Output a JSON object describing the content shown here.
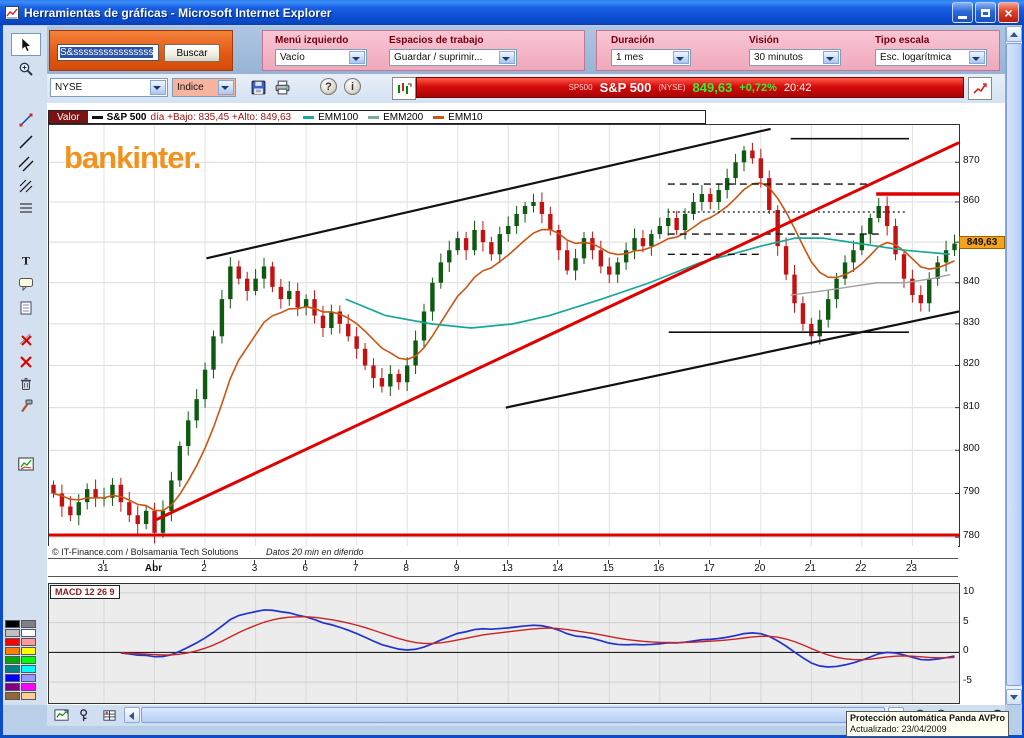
{
  "window": {
    "title": "Herramientas de gráficas - Microsoft Internet Explorer"
  },
  "toolbar": {
    "search": {
      "value": "S&ssssssssssssssss",
      "button_label": "Buscar"
    },
    "menu_izquierdo": {
      "label": "Menú izquierdo",
      "value": "Vacío"
    },
    "espacios": {
      "label": "Espacios de trabajo",
      "value": "Guardar / suprimir..."
    },
    "duracion": {
      "label": "Duración",
      "value": "1 mes"
    },
    "vision": {
      "label": "Visión",
      "value": "30 minutos"
    },
    "tipo_escala": {
      "label": "Tipo escala",
      "value": "Esc. logarítmica"
    },
    "exchange": {
      "value": "NYSE"
    },
    "instrument_type": {
      "value": "Indice"
    },
    "help_label": "?",
    "info_label": "i"
  },
  "banner": {
    "symbol_small": "SP500",
    "symbol": "S&P 500",
    "exchange": "(NYSE)",
    "price": "849,63",
    "change": "+0,72%",
    "time": "20:42"
  },
  "legend": {
    "valor_label": "Valor",
    "series_name": "S&P 500",
    "day_info": "día +Bajo: 835,45 +Alto: 849,63",
    "emm100": "EMM100",
    "emm200": "EMM200",
    "emm10": "EMM10"
  },
  "watermark": "bankinter.",
  "footer": {
    "copyright": "© IT-Finance.com / Bolsamania Tech Solutions",
    "delay_note": "Datos 20 min en diferido"
  },
  "price_badge": "849,63",
  "macd_label": "MACD 12 26 9",
  "popup": {
    "line1": "Protección automática Panda AVPro",
    "line2": "Actualizado: 23/04/2009"
  },
  "sidebar": {
    "tools": [
      {
        "name": "cursor-tool",
        "selected": true
      },
      {
        "name": "zoom-tool"
      },
      {
        "name": "segment-tool"
      },
      {
        "name": "trendline-tool"
      },
      {
        "name": "parallel-channel-tool"
      },
      {
        "name": "pitchfork-tool"
      },
      {
        "name": "fibonacci-tool"
      },
      {
        "name": "text-tool"
      },
      {
        "name": "callout-tool"
      },
      {
        "name": "notes-tool"
      },
      {
        "name": "delete-drawing-tool"
      },
      {
        "name": "delete-all-tool"
      },
      {
        "name": "trash-tool"
      },
      {
        "name": "settings-tool"
      },
      {
        "name": "mini-chart-tool"
      }
    ]
  },
  "palette": [
    "#000000",
    "#808080",
    "#c0c0c0",
    "#ffffff",
    "#ff0000",
    "#ff9999",
    "#ff8000",
    "#ffff00",
    "#00aa00",
    "#00ff00",
    "#008080",
    "#00ffff",
    "#0000ff",
    "#9999ff",
    "#800080",
    "#ff00ff",
    "#996633",
    "#ffcc99"
  ],
  "bottom_toolbar": {
    "left_icons": [
      "chart-panel-icon",
      "key-icon",
      "grid-icon"
    ],
    "zoom_icons": [
      "zoom-out-icon",
      "zoom-in-icon"
    ],
    "fit_icon": "fit-screen-icon"
  },
  "chart_data": {
    "type": "candlestick",
    "symbol": "S&P 500",
    "exchange": "NYSE",
    "interval": "30 minutos",
    "duration": "1 mes",
    "scale": "logarítmica",
    "last_price": 849.63,
    "day_low": 835.45,
    "day_high": 849.63,
    "change_pct": "+0,72%",
    "time": "20:42",
    "y_axis": {
      "scale": "log",
      "min": 778,
      "max": 879.5,
      "ticks": [
        870,
        860,
        850,
        840,
        830,
        820,
        810,
        800,
        790,
        780
      ]
    },
    "x_ticks": {
      "labels": [
        "31",
        "Abr",
        "2",
        "3",
        "6",
        "7",
        "8",
        "9",
        "13",
        "14",
        "15",
        "16",
        "17",
        "20",
        "21",
        "22",
        "23"
      ],
      "bold_index": 1
    },
    "first_open": 792,
    "closes": [
      790,
      787,
      785,
      788,
      791,
      789,
      789,
      792,
      788,
      785,
      783,
      786,
      781,
      786,
      793,
      801,
      807,
      812,
      819,
      827,
      836,
      844,
      841,
      838,
      841,
      844,
      839,
      836,
      838,
      834,
      836,
      832,
      829,
      833,
      830,
      827,
      824,
      820,
      817,
      815,
      818,
      816,
      820,
      826,
      833,
      840,
      845,
      848,
      851,
      848,
      853,
      850,
      847,
      852,
      854,
      857,
      859,
      860,
      857,
      853,
      848,
      843,
      846,
      851,
      848,
      844,
      842,
      845,
      848,
      851,
      849,
      852,
      854,
      856,
      853,
      857,
      860,
      862,
      860,
      863,
      866,
      870,
      873,
      871,
      866,
      858,
      849,
      842,
      835,
      830,
      827,
      831,
      836,
      841,
      845,
      848,
      852,
      856,
      859,
      854,
      847,
      841,
      837,
      835,
      841,
      845,
      848,
      849.63
    ],
    "up_color": "#0d5a10",
    "down_color": "#c41212",
    "moving_averages": {
      "emm10": {
        "period": 10,
        "color": "#cc5511"
      },
      "emm100": {
        "period": 100,
        "color": "#18a89a",
        "points": [
          [
            0.326,
            836
          ],
          [
            0.37,
            832
          ],
          [
            0.42,
            830
          ],
          [
            0.464,
            829
          ],
          [
            0.51,
            830
          ],
          [
            0.55,
            832
          ],
          [
            0.607,
            836
          ],
          [
            0.66,
            840
          ],
          [
            0.716,
            845
          ],
          [
            0.75,
            847
          ],
          [
            0.782,
            849
          ],
          [
            0.82,
            851
          ],
          [
            0.85,
            851
          ],
          [
            0.88,
            850
          ],
          [
            0.91,
            849
          ],
          [
            0.94,
            848
          ],
          [
            0.99,
            847
          ]
        ]
      },
      "emm200": {
        "period": 200,
        "color": "#a0a0a0",
        "points": [
          [
            0.815,
            837
          ],
          [
            0.85,
            838
          ],
          [
            0.88,
            839
          ],
          [
            0.91,
            840
          ],
          [
            0.94,
            840
          ],
          [
            0.97,
            841
          ],
          [
            0.99,
            842
          ]
        ]
      }
    },
    "overlays": [
      {
        "from": [
          0.173,
          846
        ],
        "to": [
          0.793,
          878.5
        ],
        "color": "#111111",
        "width": 2.2
      },
      {
        "from": [
          0.502,
          810
        ],
        "to": [
          1,
          833
        ],
        "color": "#111111",
        "width": 2.2
      },
      {
        "from": [
          0.681,
          828
        ],
        "to": [
          0.945,
          828
        ],
        "color": "#111111",
        "width": 1.6
      },
      {
        "from": [
          0.815,
          876
        ],
        "to": [
          0.945,
          876
        ],
        "color": "#111111",
        "width": 1.6
      },
      {
        "from": [
          0.68,
          864.5
        ],
        "to": [
          0.9,
          864.5
        ],
        "color": "#111111",
        "width": 1.4,
        "dash": "7,5"
      },
      {
        "from": [
          0.68,
          857.5
        ],
        "to": [
          0.942,
          857.5
        ],
        "color": "#111111",
        "width": 1.2,
        "dash": "2,3"
      },
      {
        "from": [
          0.68,
          852
        ],
        "to": [
          0.915,
          852
        ],
        "color": "#111111",
        "width": 1.4,
        "dash": "7,5"
      },
      {
        "from": [
          0.68,
          847
        ],
        "to": [
          0.78,
          847
        ],
        "color": "#111111",
        "width": 1.4,
        "dash": "7,5"
      },
      {
        "from": [
          0.118,
          784
        ],
        "to": [
          1,
          875
        ],
        "color": "#e00000",
        "width": 3
      },
      {
        "from": [
          0.909,
          862
        ],
        "to": [
          1,
          862
        ],
        "color": "#e00000",
        "width": 3.5
      },
      {
        "from": [
          0,
          780.5
        ],
        "to": [
          1,
          780.5
        ],
        "color": "#e00000",
        "width": 3
      }
    ],
    "macd_panel": {
      "params": [
        12,
        26,
        9
      ],
      "ylim": [
        -8.5,
        11.5
      ],
      "ticks": [
        10,
        5,
        0,
        -5
      ],
      "macd_color": "#2233cc",
      "signal_color": "#cc2222",
      "display_scale": 0.5
    }
  }
}
